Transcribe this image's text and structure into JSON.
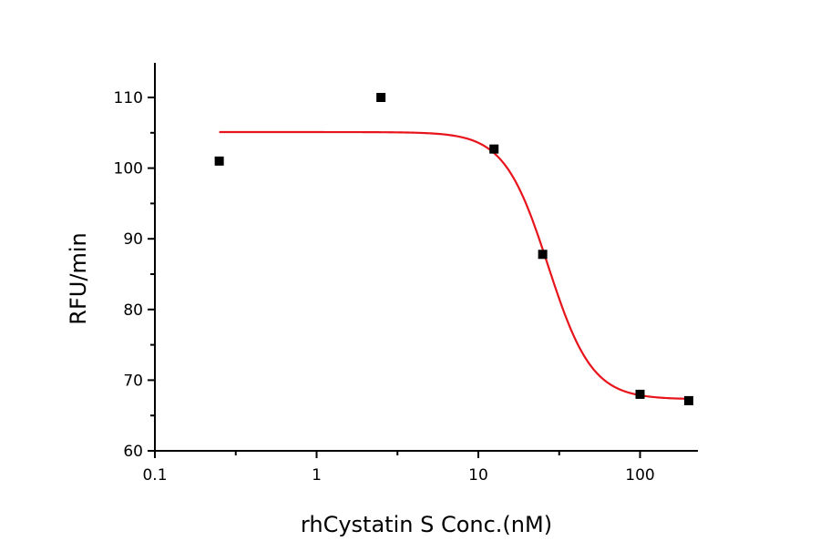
{
  "chart_data": {
    "type": "scatter",
    "title": "",
    "xlabel": "rhCystatin S Conc.(nM)",
    "ylabel": "RFU/min",
    "xscale": "log",
    "xlim": [
      0.1,
      220
    ],
    "ylim": [
      60,
      115
    ],
    "x_ticks": [
      0.1,
      1,
      10,
      100
    ],
    "x_tick_labels": [
      "0.1",
      "1",
      "10",
      "100"
    ],
    "y_ticks": [
      60,
      70,
      80,
      90,
      100,
      110
    ],
    "y_tick_labels": [
      "60",
      "70",
      "80",
      "90",
      "100",
      "110"
    ],
    "grid": false,
    "legend": null,
    "series": [
      {
        "name": "data",
        "type": "scatter",
        "marker": "square",
        "color": "#000000",
        "x": [
          0.25,
          2.5,
          12.5,
          25,
          100,
          200
        ],
        "y": [
          101.0,
          110.0,
          102.7,
          87.8,
          68.0,
          67.1
        ]
      },
      {
        "name": "fit",
        "type": "line",
        "color": "#e8141b",
        "model": "4PL",
        "top": 105.1,
        "bottom": 67.3,
        "ec50": 27,
        "hill": 3.2,
        "x_range": [
          0.25,
          200
        ]
      }
    ]
  }
}
